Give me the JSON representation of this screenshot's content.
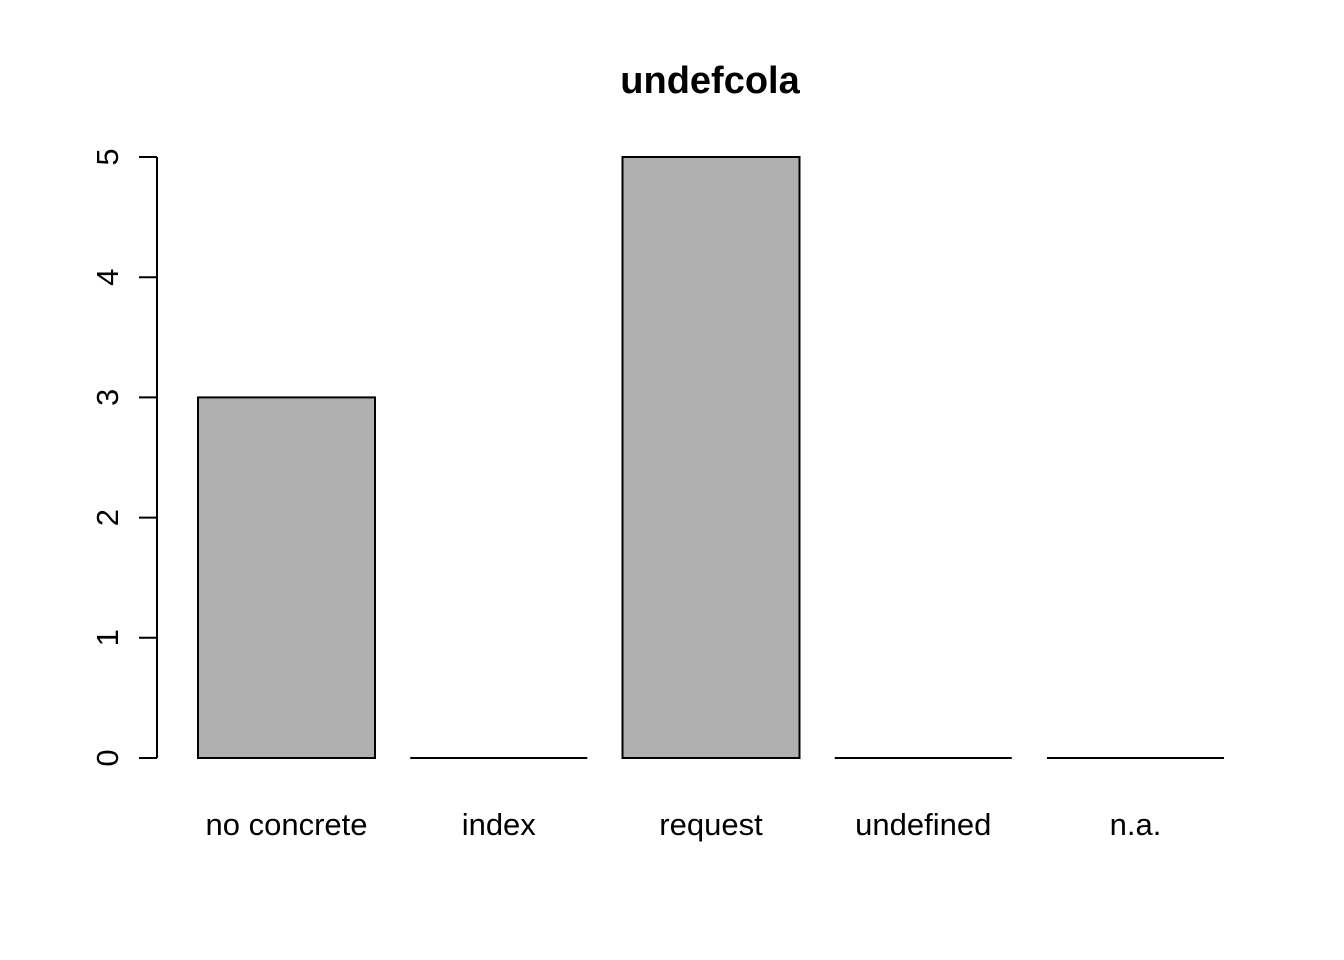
{
  "chart_data": {
    "type": "bar",
    "title": "undefcola",
    "xlabel": "",
    "ylabel": "",
    "categories": [
      "no concrete",
      "index",
      "request",
      "undefined",
      "n.a."
    ],
    "values": [
      3,
      0,
      5,
      0,
      0
    ],
    "ylim": [
      0,
      5
    ],
    "yticks": [
      0,
      1,
      2,
      3,
      4,
      5
    ],
    "bar_fill": "#b0b0b0",
    "bar_stroke": "#000000",
    "grid": false,
    "legend": "none"
  }
}
